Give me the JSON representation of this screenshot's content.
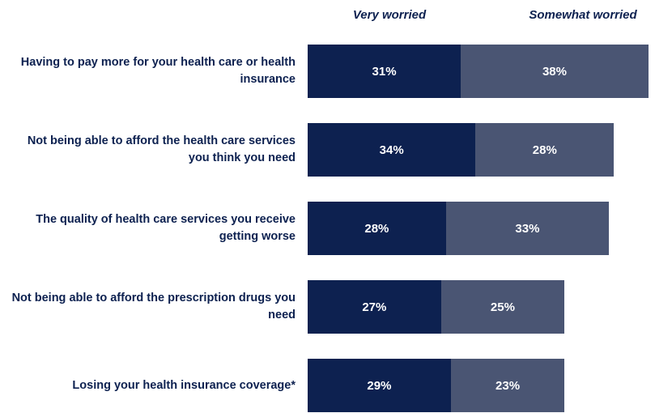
{
  "chart_data": {
    "type": "bar",
    "orientation": "horizontal",
    "stacked": true,
    "legend": {
      "position": "top"
    },
    "categories": [
      "Having to pay more for your health care or health insurance",
      "Not being able to afford the health care services you think you need",
      "The quality of health care services you receive getting worse",
      "Not being able to afford the prescription drugs you need",
      "Losing your health insurance coverage*"
    ],
    "series": [
      {
        "name": "Very worried",
        "values": [
          31,
          34,
          28,
          27,
          29
        ],
        "labels": [
          "31%",
          "34%",
          "28%",
          "27%",
          "29%"
        ],
        "color": "#0d2150"
      },
      {
        "name": "Somewhat worried",
        "values": [
          38,
          28,
          33,
          25,
          23
        ],
        "labels": [
          "38%",
          "28%",
          "33%",
          "25%",
          "23%"
        ],
        "color": "#4a5573"
      }
    ],
    "unit": "%"
  }
}
